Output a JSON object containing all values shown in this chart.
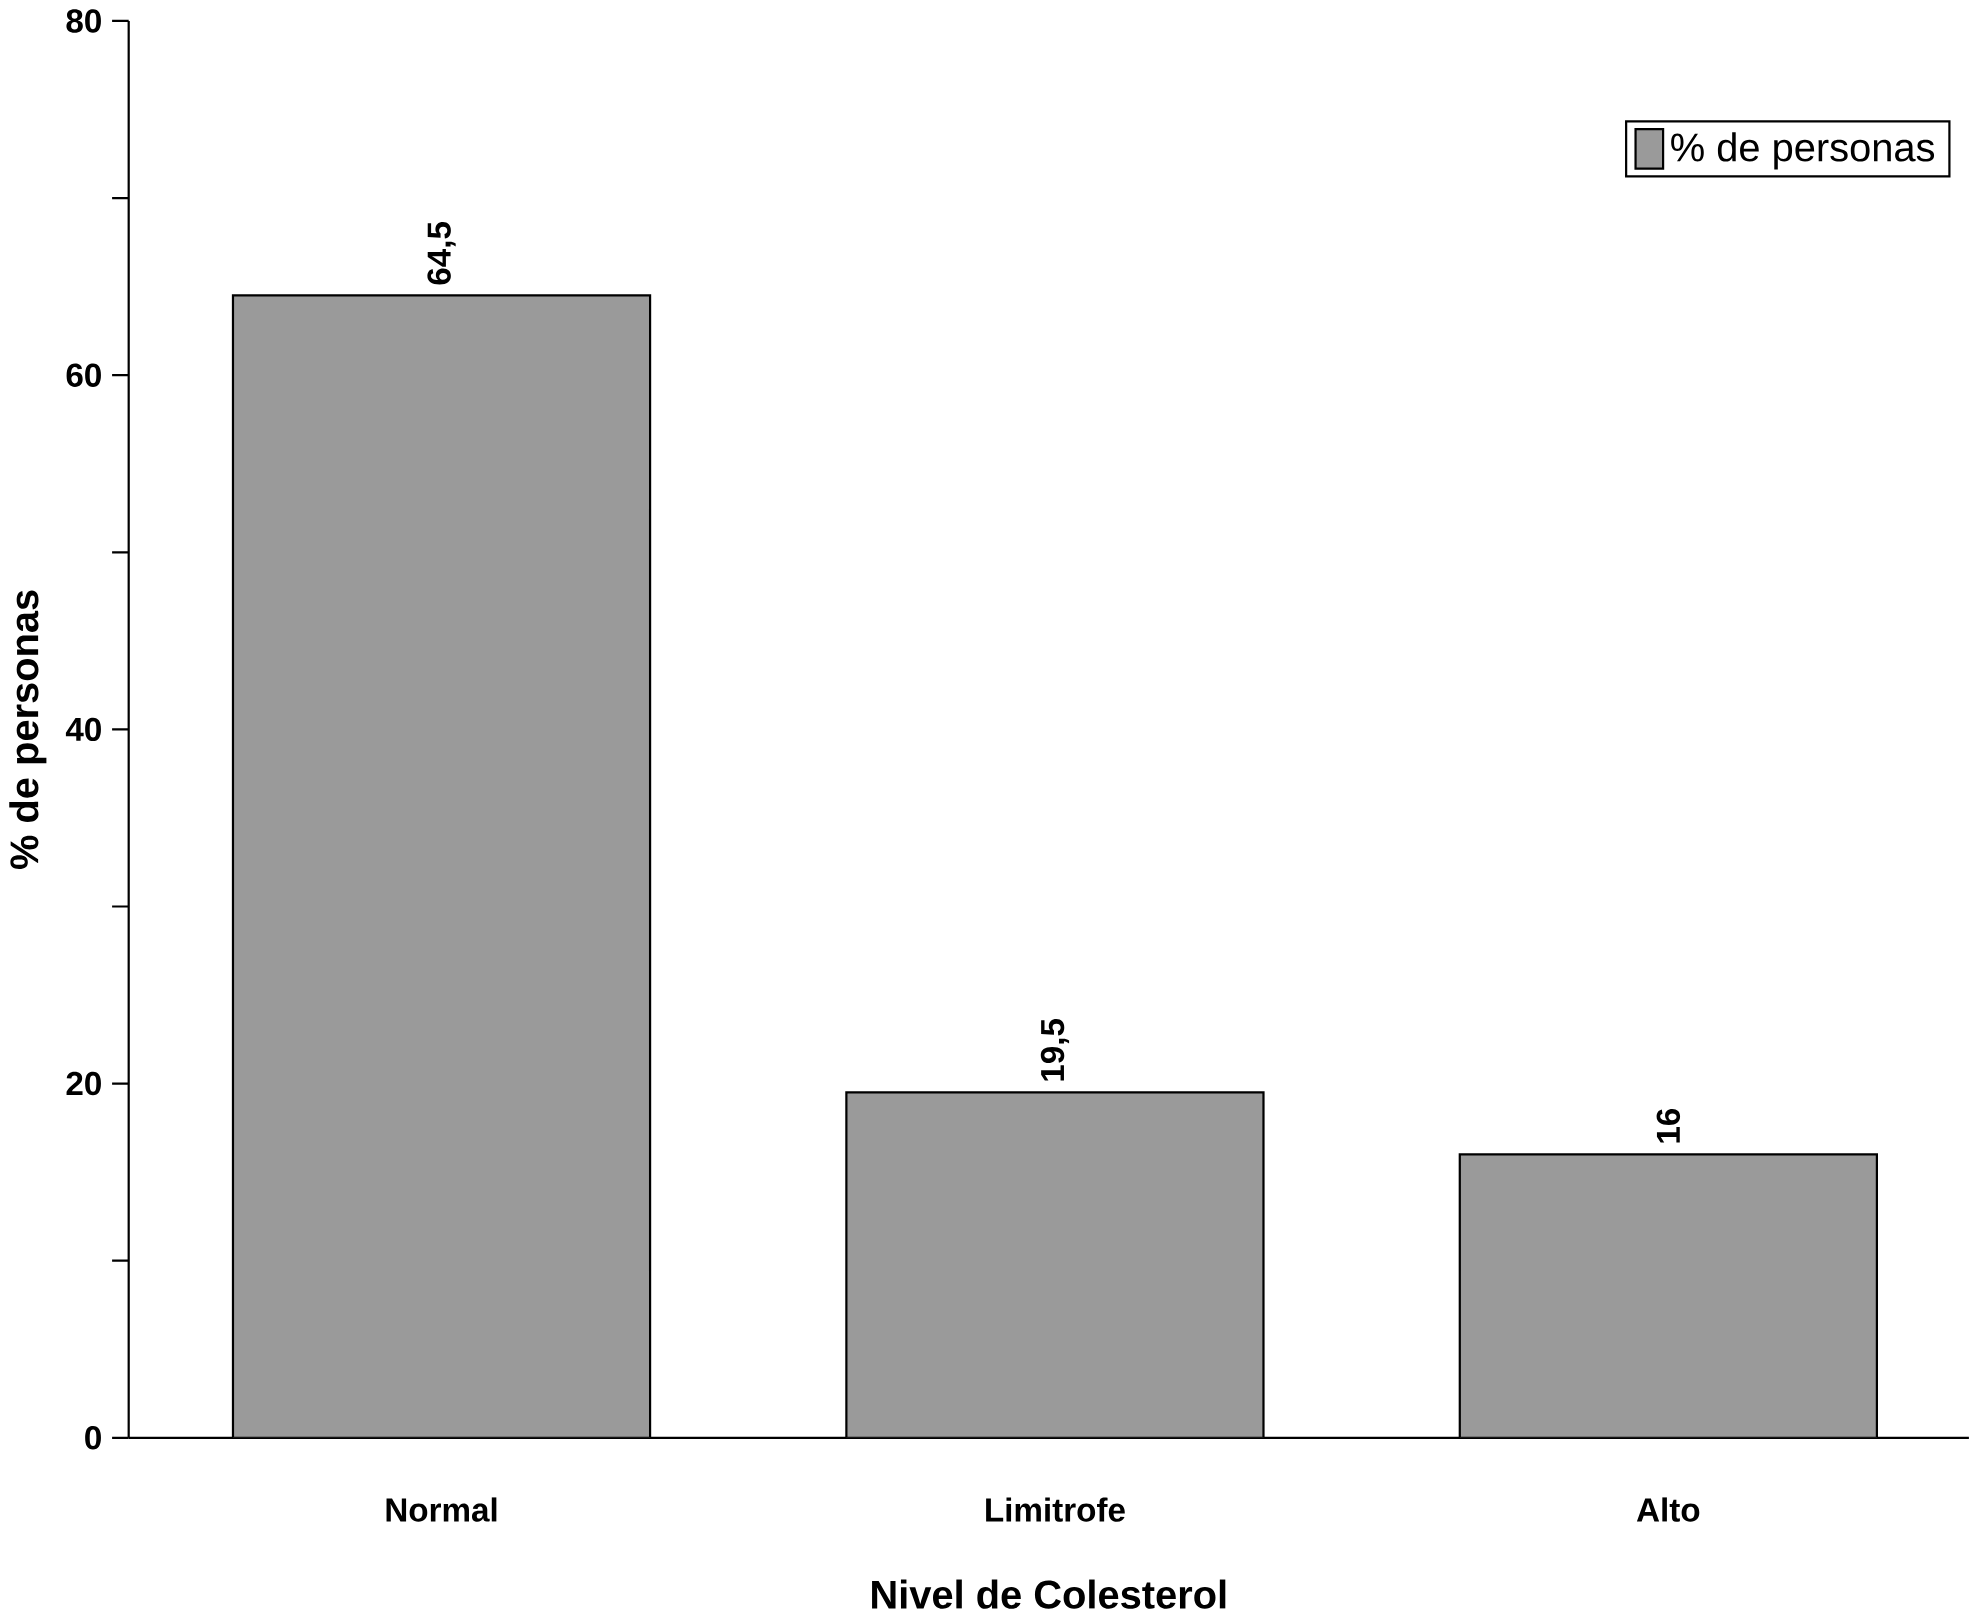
{
  "chart_data": {
    "type": "bar",
    "xlabel": "Nivel de Colesterol",
    "ylabel": "% de personas",
    "categories": [
      "Normal",
      "Limitrofe",
      "Alto"
    ],
    "series": [
      {
        "name": "% de personas",
        "color": "#9a9a9a",
        "values": [
          64.5,
          19.5,
          16
        ]
      }
    ],
    "value_labels": [
      "64,5",
      "19,5",
      "16"
    ],
    "ylim": [
      0,
      80
    ],
    "yticks": [
      0,
      {
        "value": 10,
        "label": null
      },
      20,
      {
        "value": 30,
        "label": null
      },
      40,
      {
        "value": 50,
        "label": null
      },
      60,
      {
        "value": 70,
        "label": null
      },
      80
    ],
    "legend": "top right"
  }
}
